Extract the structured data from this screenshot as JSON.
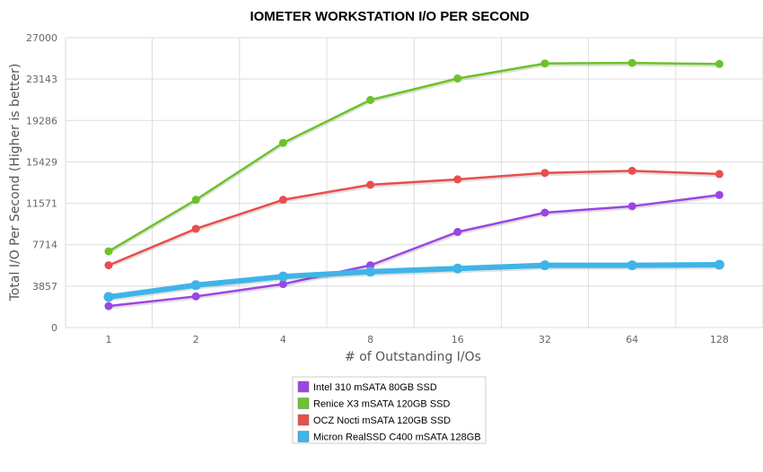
{
  "chart_data": {
    "type": "line",
    "title": "IOMETER WORKSTATION I/O PER SECOND",
    "xlabel": "# of Outstanding I/Os",
    "ylabel": "Total I/O Per Second (Higher is better)",
    "categories": [
      "1",
      "2",
      "4",
      "8",
      "16",
      "32",
      "64",
      "128"
    ],
    "yticks": [
      "0",
      "3857",
      "7714",
      "11571",
      "15429",
      "19286",
      "23143",
      "27000"
    ],
    "ylim": [
      0,
      27000
    ],
    "grid": true,
    "legend_position": "bottom",
    "series": [
      {
        "name": "Intel 310 mSATA 80GB SSD",
        "color": "#9b45e4",
        "values": [
          2000,
          2900,
          4050,
          5800,
          8900,
          10700,
          11300,
          12350
        ]
      },
      {
        "name": "Renice X3 mSATA 120GB SSD",
        "color": "#6cc22b",
        "values": [
          7100,
          11900,
          17200,
          21200,
          23200,
          24600,
          24650,
          24550
        ]
      },
      {
        "name": "OCZ Nocti mSATA 120GB SSD",
        "color": "#e84e4e",
        "values": [
          5800,
          9200,
          11900,
          13300,
          13800,
          14400,
          14600,
          14300
        ]
      },
      {
        "name": "Micron RealSSD C400 mSATA 128GB",
        "color": "#3fb4e8",
        "values": [
          2850,
          3950,
          4750,
          5200,
          5500,
          5800,
          5800,
          5850
        ]
      }
    ]
  }
}
